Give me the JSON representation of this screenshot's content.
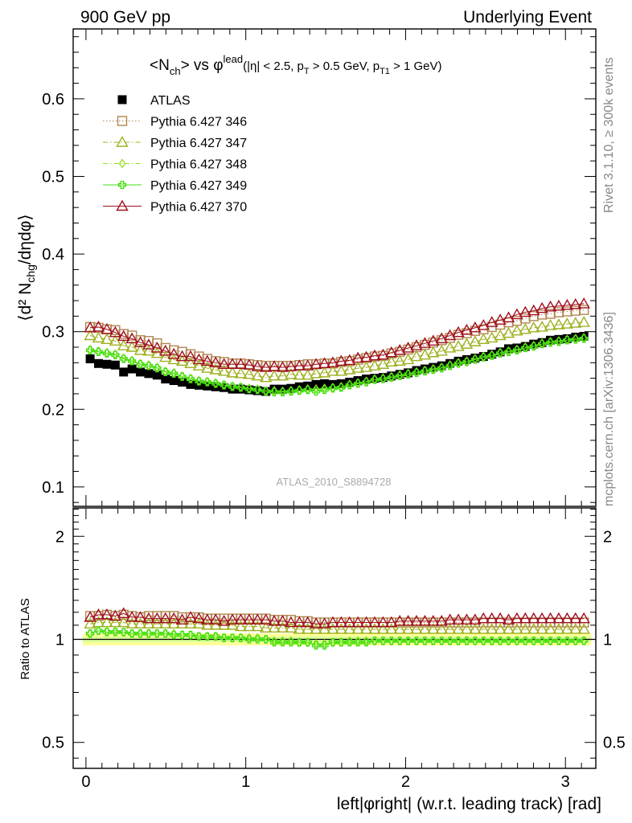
{
  "header": {
    "left": "900 GeV pp",
    "right": "Underlying Event"
  },
  "plot_title": {
    "main": "<N",
    "main_sub": "ch",
    "vs": "> vs φ",
    "vs_sup": "lead",
    "cuts_1": "(|η| < 2.5, p",
    "cuts_1_sub": "T",
    "cuts_2": " > 0.5 GeV, p",
    "cuts_2_sub": "T1",
    "cuts_3": " > 1 GeV)"
  },
  "side_labels": {
    "rivet": "Rivet 3.1.10, ≥ 300k events",
    "mcplots": "mcplots.cern.ch [arXiv:1306.3436]"
  },
  "analysis_label": "ATLAS_2010_S8894728",
  "colors": {
    "atlas": "#000000",
    "p346": "#b2874f",
    "p347": "#9fb020",
    "p348": "#93e020",
    "p349": "#40e010",
    "p370": "#a01020",
    "band_outer": "#ffff99",
    "band_inner": "#ddff99"
  },
  "chart_data": [
    {
      "type": "scatter",
      "panel": "main",
      "ylabel": "⟨d² N",
      "ylabel_sub": "chg",
      "ylabel_tail": "/dηdφ⟩",
      "xlim": [
        -0.08,
        3.19
      ],
      "ylim": [
        0.075,
        0.69
      ],
      "yticks": [
        0.1,
        0.2,
        0.3,
        0.4,
        0.5,
        0.6
      ],
      "ytick_labels": [
        "0.1",
        "0.2",
        "0.3",
        "0.4",
        "0.5",
        "0.6"
      ],
      "legend_position": "top-left",
      "x": [
        0.0262,
        0.0785,
        0.1309,
        0.1833,
        0.2356,
        0.288,
        0.3403,
        0.3927,
        0.4451,
        0.4974,
        0.5498,
        0.6021,
        0.6545,
        0.7069,
        0.7592,
        0.8116,
        0.8639,
        0.9163,
        0.9687,
        1.021,
        1.0734,
        1.1257,
        1.1781,
        1.2305,
        1.2828,
        1.3352,
        1.3875,
        1.4399,
        1.4923,
        1.5446,
        1.597,
        1.6493,
        1.7017,
        1.7541,
        1.8064,
        1.8588,
        1.9111,
        1.9635,
        2.0159,
        2.0682,
        2.1206,
        2.1729,
        2.2253,
        2.2777,
        2.33,
        2.3824,
        2.4347,
        2.4871,
        2.5395,
        2.5918,
        2.6442,
        2.6965,
        2.7489,
        2.8013,
        2.8536,
        2.906,
        2.9583,
        3.0107,
        3.0631,
        3.1154
      ],
      "series": [
        {
          "name": "ATLAS",
          "key": "atlas",
          "marker": "square-filled",
          "values": [
            0.265,
            0.259,
            0.258,
            0.257,
            0.248,
            0.252,
            0.248,
            0.246,
            0.244,
            0.239,
            0.237,
            0.235,
            0.232,
            0.231,
            0.23,
            0.229,
            0.228,
            0.226,
            0.226,
            0.225,
            0.224,
            0.223,
            0.226,
            0.226,
            0.227,
            0.229,
            0.23,
            0.232,
            0.233,
            0.232,
            0.233,
            0.235,
            0.237,
            0.239,
            0.24,
            0.241,
            0.243,
            0.245,
            0.247,
            0.25,
            0.252,
            0.254,
            0.256,
            0.259,
            0.262,
            0.264,
            0.266,
            0.268,
            0.271,
            0.274,
            0.278,
            0.279,
            0.281,
            0.284,
            0.286,
            0.289,
            0.29,
            0.291,
            0.293,
            0.294
          ]
        },
        {
          "name": "Pythia 6.427 346",
          "key": "p346",
          "marker": "square-open",
          "line": "dotted",
          "values": [
            0.306,
            0.305,
            0.303,
            0.302,
            0.297,
            0.295,
            0.289,
            0.288,
            0.285,
            0.279,
            0.276,
            0.274,
            0.271,
            0.268,
            0.265,
            0.262,
            0.261,
            0.259,
            0.259,
            0.258,
            0.257,
            0.256,
            0.256,
            0.256,
            0.256,
            0.257,
            0.258,
            0.258,
            0.259,
            0.259,
            0.261,
            0.262,
            0.264,
            0.266,
            0.268,
            0.269,
            0.272,
            0.274,
            0.277,
            0.28,
            0.283,
            0.286,
            0.289,
            0.292,
            0.296,
            0.298,
            0.301,
            0.303,
            0.306,
            0.309,
            0.312,
            0.314,
            0.317,
            0.32,
            0.322,
            0.323,
            0.325,
            0.326,
            0.327,
            0.328
          ]
        },
        {
          "name": "Pythia 6.427 347",
          "key": "p347",
          "marker": "triangle-open",
          "line": "dashdot",
          "values": [
            0.295,
            0.292,
            0.29,
            0.288,
            0.282,
            0.28,
            0.276,
            0.275,
            0.272,
            0.267,
            0.264,
            0.262,
            0.259,
            0.256,
            0.253,
            0.251,
            0.249,
            0.247,
            0.246,
            0.245,
            0.243,
            0.241,
            0.243,
            0.243,
            0.245,
            0.244,
            0.244,
            0.246,
            0.247,
            0.249,
            0.249,
            0.251,
            0.253,
            0.254,
            0.256,
            0.258,
            0.261,
            0.262,
            0.264,
            0.268,
            0.27,
            0.273,
            0.275,
            0.279,
            0.281,
            0.284,
            0.287,
            0.29,
            0.292,
            0.295,
            0.298,
            0.301,
            0.303,
            0.305,
            0.306,
            0.308,
            0.309,
            0.31,
            0.311,
            0.312
          ]
        },
        {
          "name": "Pythia 6.427 348",
          "key": "p348",
          "marker": "diamond-open",
          "line": "dashdot",
          "values": [
            0.277,
            0.275,
            0.273,
            0.271,
            0.266,
            0.263,
            0.259,
            0.257,
            0.254,
            0.249,
            0.247,
            0.243,
            0.24,
            0.237,
            0.236,
            0.234,
            0.232,
            0.23,
            0.229,
            0.227,
            0.226,
            0.224,
            0.224,
            0.223,
            0.224,
            0.225,
            0.226,
            0.226,
            0.227,
            0.228,
            0.229,
            0.232,
            0.234,
            0.236,
            0.239,
            0.24,
            0.242,
            0.244,
            0.246,
            0.248,
            0.25,
            0.252,
            0.254,
            0.257,
            0.26,
            0.262,
            0.265,
            0.268,
            0.27,
            0.273,
            0.275,
            0.277,
            0.28,
            0.282,
            0.285,
            0.287,
            0.288,
            0.29,
            0.291,
            0.292
          ]
        },
        {
          "name": "Pythia 6.427 349",
          "key": "p349",
          "marker": "cross-open",
          "line": "solid",
          "values": [
            0.276,
            0.274,
            0.272,
            0.27,
            0.265,
            0.262,
            0.258,
            0.256,
            0.253,
            0.248,
            0.246,
            0.242,
            0.239,
            0.236,
            0.235,
            0.233,
            0.231,
            0.229,
            0.228,
            0.226,
            0.225,
            0.223,
            0.222,
            0.222,
            0.223,
            0.224,
            0.225,
            0.223,
            0.225,
            0.227,
            0.228,
            0.231,
            0.233,
            0.235,
            0.238,
            0.239,
            0.241,
            0.243,
            0.245,
            0.247,
            0.249,
            0.251,
            0.253,
            0.256,
            0.259,
            0.261,
            0.264,
            0.267,
            0.269,
            0.272,
            0.274,
            0.276,
            0.279,
            0.281,
            0.284,
            0.286,
            0.287,
            0.289,
            0.29,
            0.291
          ]
        },
        {
          "name": "Pythia 6.427 370",
          "key": "p370",
          "marker": "triangle-open",
          "line": "solid",
          "values": [
            0.305,
            0.306,
            0.303,
            0.299,
            0.294,
            0.291,
            0.286,
            0.283,
            0.279,
            0.275,
            0.271,
            0.268,
            0.268,
            0.264,
            0.262,
            0.26,
            0.258,
            0.258,
            0.258,
            0.257,
            0.255,
            0.254,
            0.255,
            0.254,
            0.255,
            0.256,
            0.256,
            0.258,
            0.259,
            0.26,
            0.262,
            0.263,
            0.266,
            0.267,
            0.269,
            0.27,
            0.273,
            0.276,
            0.279,
            0.282,
            0.285,
            0.288,
            0.291,
            0.295,
            0.299,
            0.302,
            0.305,
            0.308,
            0.312,
            0.315,
            0.318,
            0.322,
            0.325,
            0.327,
            0.33,
            0.332,
            0.333,
            0.334,
            0.335,
            0.336
          ]
        }
      ]
    },
    {
      "type": "scatter",
      "panel": "ratio",
      "ylabel": "Ratio to ATLAS",
      "xlabel": "left|φright| (w.r.t. leading track) [rad]",
      "log_y": true,
      "xlim": [
        -0.08,
        3.19
      ],
      "ylim": [
        0.42,
        2.42
      ],
      "xticks": [
        0,
        1,
        2,
        3
      ],
      "xtick_labels": [
        "0",
        "1",
        "2",
        "3"
      ],
      "yticks": [
        0.5,
        1,
        2
      ],
      "ytick_labels": [
        "0.5",
        "1",
        "2"
      ],
      "reference_line": 1,
      "bands": {
        "outer": [
          0.96,
          1.04
        ],
        "inner": [
          0.98,
          1.02
        ]
      },
      "series": [
        {
          "name": "Pythia 6.427 346",
          "key": "p346",
          "values": [
            1.17,
            1.17,
            1.18,
            1.17,
            1.18,
            1.17,
            1.16,
            1.17,
            1.17,
            1.17,
            1.17,
            1.16,
            1.16,
            1.16,
            1.15,
            1.15,
            1.15,
            1.15,
            1.15,
            1.15,
            1.15,
            1.15,
            1.14,
            1.14,
            1.14,
            1.13,
            1.13,
            1.12,
            1.12,
            1.12,
            1.12,
            1.12,
            1.12,
            1.12,
            1.12,
            1.12,
            1.12,
            1.12,
            1.12,
            1.12,
            1.12,
            1.12,
            1.12,
            1.12,
            1.12,
            1.12,
            1.12,
            1.12,
            1.12,
            1.12,
            1.12,
            1.12,
            1.12,
            1.12,
            1.12,
            1.12,
            1.12,
            1.12,
            1.12,
            1.12
          ]
        },
        {
          "name": "Pythia 6.427 347",
          "key": "p347",
          "values": [
            1.11,
            1.12,
            1.12,
            1.12,
            1.12,
            1.11,
            1.11,
            1.11,
            1.11,
            1.11,
            1.11,
            1.11,
            1.11,
            1.11,
            1.1,
            1.1,
            1.1,
            1.1,
            1.09,
            1.09,
            1.09,
            1.08,
            1.08,
            1.08,
            1.08,
            1.07,
            1.07,
            1.07,
            1.07,
            1.07,
            1.07,
            1.07,
            1.07,
            1.07,
            1.07,
            1.07,
            1.07,
            1.07,
            1.07,
            1.07,
            1.07,
            1.07,
            1.07,
            1.07,
            1.07,
            1.07,
            1.07,
            1.07,
            1.07,
            1.07,
            1.07,
            1.07,
            1.07,
            1.07,
            1.07,
            1.07,
            1.07,
            1.07,
            1.07,
            1.07
          ]
        },
        {
          "name": "Pythia 6.427 348",
          "key": "p348",
          "values": [
            1.04,
            1.06,
            1.06,
            1.06,
            1.05,
            1.04,
            1.04,
            1.04,
            1.04,
            1.04,
            1.04,
            1.03,
            1.03,
            1.02,
            1.02,
            1.02,
            1.01,
            1.01,
            1.01,
            1.01,
            1.01,
            1.0,
            0.99,
            0.99,
            0.99,
            0.98,
            0.98,
            0.97,
            0.97,
            0.98,
            0.98,
            0.99,
            0.99,
            0.99,
            0.99,
            0.99,
            0.99,
            0.99,
            0.99,
            0.99,
            0.99,
            0.99,
            0.99,
            0.99,
            0.99,
            0.99,
            0.99,
            0.99,
            0.99,
            0.99,
            0.99,
            0.99,
            0.99,
            0.99,
            0.99,
            0.99,
            0.99,
            0.99,
            0.99,
            0.99
          ]
        },
        {
          "name": "Pythia 6.427 349",
          "key": "p349",
          "values": [
            1.04,
            1.06,
            1.05,
            1.05,
            1.05,
            1.04,
            1.04,
            1.04,
            1.04,
            1.04,
            1.03,
            1.03,
            1.03,
            1.02,
            1.02,
            1.02,
            1.01,
            1.01,
            1.01,
            1.0,
            1.0,
            1.0,
            0.98,
            0.98,
            0.98,
            0.98,
            0.98,
            0.96,
            0.96,
            0.98,
            0.98,
            0.98,
            0.98,
            0.98,
            0.99,
            0.99,
            0.99,
            0.99,
            0.99,
            0.99,
            0.99,
            0.99,
            0.99,
            0.99,
            0.99,
            0.99,
            0.99,
            0.99,
            0.99,
            0.99,
            0.99,
            0.99,
            0.99,
            0.99,
            0.99,
            0.99,
            0.99,
            0.99,
            0.99,
            0.99
          ]
        },
        {
          "name": "Pythia 6.427 370",
          "key": "p370",
          "values": [
            1.16,
            1.18,
            1.18,
            1.17,
            1.19,
            1.16,
            1.16,
            1.15,
            1.15,
            1.15,
            1.15,
            1.14,
            1.16,
            1.15,
            1.14,
            1.14,
            1.13,
            1.14,
            1.14,
            1.14,
            1.14,
            1.14,
            1.13,
            1.13,
            1.12,
            1.12,
            1.12,
            1.11,
            1.11,
            1.12,
            1.12,
            1.12,
            1.12,
            1.12,
            1.12,
            1.12,
            1.12,
            1.13,
            1.13,
            1.13,
            1.13,
            1.13,
            1.13,
            1.14,
            1.14,
            1.14,
            1.14,
            1.15,
            1.15,
            1.15,
            1.14,
            1.15,
            1.15,
            1.15,
            1.15,
            1.15,
            1.15,
            1.15,
            1.15,
            1.15
          ]
        }
      ]
    }
  ]
}
